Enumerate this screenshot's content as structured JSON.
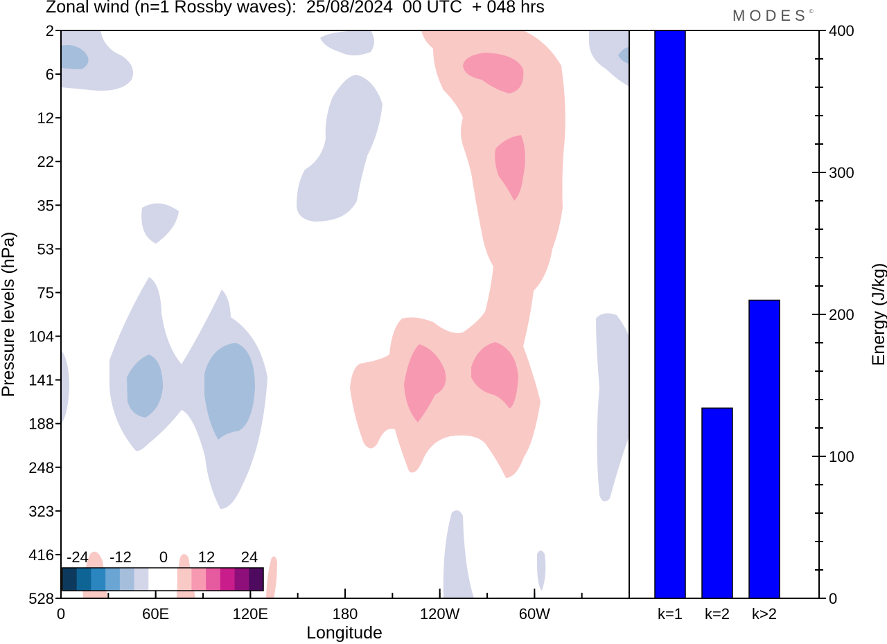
{
  "title": "Zonal wind (n=1 Rossby waves):  25/08/2024  00 UTC  + 048 hrs",
  "logo": {
    "text": "MODES",
    "mark": "©"
  },
  "chart_data": [
    {
      "type": "heatmap",
      "title": "Zonal wind (n=1 Rossby waves):  25/08/2024  00 UTC  + 048 hrs",
      "xlabel": "Longitude",
      "ylabel": "Pressure levels (hPa)",
      "x_ticks": [
        "0",
        "60E",
        "120E",
        "180",
        "120W",
        "60W"
      ],
      "x_tick_values": [
        0,
        60,
        120,
        180,
        240,
        300
      ],
      "xlim": [
        0,
        360
      ],
      "y_ticks": [
        "2",
        "6",
        "12",
        "22",
        "35",
        "53",
        "75",
        "104",
        "141",
        "188",
        "248",
        "323",
        "416",
        "528"
      ],
      "colorbar": {
        "labels": [
          "-24",
          "-12",
          "0",
          "12",
          "24"
        ],
        "colors": [
          "#0d3a5c",
          "#0f6496",
          "#2b86c0",
          "#6aa5d4",
          "#a5bedc",
          "#d3d6e8",
          "#ffffff",
          "#ffffff",
          "#f9c9c6",
          "#f799b1",
          "#e65aa0",
          "#c81d8a",
          "#8e0f7a",
          "#4e0a5e"
        ]
      },
      "regions": [
        {
          "sign": "positive",
          "level": "weak",
          "lon": [
            210,
            330
          ],
          "lev": [
            "2",
            "416"
          ],
          "note": "tilted positive band"
        },
        {
          "sign": "positive",
          "level": "moderate",
          "lon": [
            255,
            295
          ],
          "lev": [
            "6",
            "12"
          ]
        },
        {
          "sign": "positive",
          "level": "moderate",
          "lon": [
            275,
            295
          ],
          "lev": [
            "22",
            "35"
          ]
        },
        {
          "sign": "positive",
          "level": "moderate",
          "lon": [
            218,
            245
          ],
          "lev": [
            "104",
            "188"
          ]
        },
        {
          "sign": "positive",
          "level": "moderate",
          "lon": [
            258,
            290
          ],
          "lev": [
            "104",
            "188"
          ]
        },
        {
          "sign": "negative",
          "level": "weak",
          "lon": [
            30,
            135
          ],
          "lev": [
            "75",
            "323"
          ]
        },
        {
          "sign": "negative",
          "level": "moderate",
          "lon": [
            40,
            65
          ],
          "lev": [
            "104",
            "188"
          ]
        },
        {
          "sign": "negative",
          "level": "moderate",
          "lon": [
            90,
            125
          ],
          "lev": [
            "104",
            "188"
          ]
        },
        {
          "sign": "negative",
          "level": "weak",
          "lon": [
            150,
            200
          ],
          "lev": [
            "6",
            "35"
          ]
        }
      ]
    },
    {
      "type": "bar",
      "categories": [
        "k=1",
        "k=2",
        "k>2"
      ],
      "values": [
        400,
        134,
        210
      ],
      "xlabel": "",
      "ylabel": "Energy (J/kg)",
      "ylim": [
        0,
        400
      ],
      "y_ticks": [
        0,
        100,
        200,
        300,
        400
      ],
      "bar_color": "#0000ff"
    }
  ]
}
